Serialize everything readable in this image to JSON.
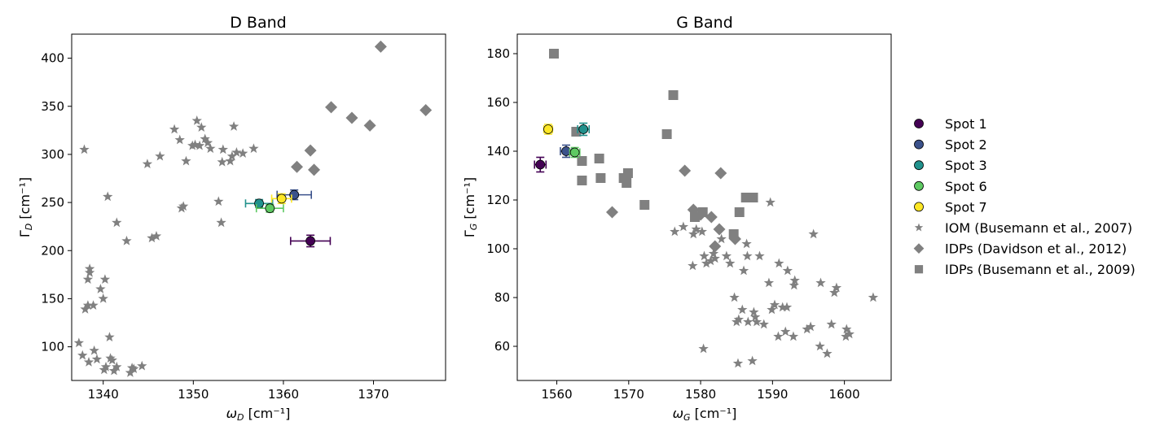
{
  "figure": {
    "legend": {
      "position": "right",
      "entries": [
        {
          "label": "Spot 1",
          "marker": "circle",
          "color": "#440154"
        },
        {
          "label": "Spot 2",
          "marker": "circle",
          "color": "#3b528b"
        },
        {
          "label": "Spot 3",
          "marker": "circle",
          "color": "#21918c"
        },
        {
          "label": "Spot 6",
          "marker": "circle",
          "color": "#5ec962"
        },
        {
          "label": "Spot 7",
          "marker": "circle",
          "color": "#fde725"
        },
        {
          "label": "IOM (Busemann et al., 2007)",
          "marker": "star",
          "color": "#808080"
        },
        {
          "label": "IDPs (Davidson et al., 2012)",
          "marker": "diamond",
          "color": "#808080"
        },
        {
          "label": "IDPs (Busemann et al., 2009)",
          "marker": "square",
          "color": "#808080"
        }
      ]
    }
  },
  "chart_data": [
    {
      "type": "scatter",
      "title": "D Band",
      "xlabel_symbol": "ω",
      "xlabel_sub": "D",
      "xlabel_unit": " [cm⁻¹]",
      "ylabel_symbol": "Γ",
      "ylabel_sub": "D",
      "ylabel_unit": " [cm⁻¹]",
      "xlim": [
        1336.5,
        1378
      ],
      "ylim": [
        65,
        425
      ],
      "xticks": [
        1340,
        1350,
        1360,
        1370
      ],
      "yticks": [
        100,
        150,
        200,
        250,
        300,
        350,
        400
      ],
      "grid": false,
      "spots": [
        {
          "name": "Spot 1",
          "x": 1363.0,
          "y": 210,
          "xerr": 2.2,
          "yerr": 6
        },
        {
          "name": "Spot 2",
          "x": 1361.2,
          "y": 258,
          "xerr": 1.9,
          "yerr": 5
        },
        {
          "name": "Spot 3",
          "x": 1357.3,
          "y": 249,
          "xerr": 1.5,
          "yerr": 4
        },
        {
          "name": "Spot 6",
          "x": 1358.5,
          "y": 244,
          "xerr": 1.5,
          "yerr": 4
        },
        {
          "name": "Spot 7",
          "x": 1359.8,
          "y": 254,
          "xerr": 1.1,
          "yerr": 5
        }
      ],
      "iom_points": [
        [
          1337.9,
          305
        ],
        [
          1337.3,
          104
        ],
        [
          1337.7,
          91
        ],
        [
          1338.0,
          139
        ],
        [
          1338.3,
          143
        ],
        [
          1338.4,
          84
        ],
        [
          1338.3,
          170
        ],
        [
          1338.5,
          177
        ],
        [
          1338.5,
          181
        ],
        [
          1338.9,
          143
        ],
        [
          1339.0,
          96
        ],
        [
          1339.3,
          87
        ],
        [
          1339.7,
          160
        ],
        [
          1340.0,
          150
        ],
        [
          1340.2,
          170
        ],
        [
          1340.1,
          76
        ],
        [
          1340.3,
          79
        ],
        [
          1340.5,
          256
        ],
        [
          1340.7,
          110
        ],
        [
          1340.8,
          88
        ],
        [
          1341.0,
          86
        ],
        [
          1341.2,
          75
        ],
        [
          1341.5,
          79
        ],
        [
          1341.5,
          229
        ],
        [
          1342.6,
          210
        ],
        [
          1343.0,
          73
        ],
        [
          1343.2,
          78
        ],
        [
          1343.4,
          77
        ],
        [
          1344.3,
          80
        ],
        [
          1344.9,
          290
        ],
        [
          1345.4,
          213
        ],
        [
          1345.9,
          215
        ],
        [
          1346.3,
          298
        ],
        [
          1347.9,
          326
        ],
        [
          1348.5,
          315
        ],
        [
          1348.7,
          244
        ],
        [
          1348.9,
          246
        ],
        [
          1349.2,
          293
        ],
        [
          1349.9,
          309
        ],
        [
          1350.2,
          310
        ],
        [
          1350.4,
          335
        ],
        [
          1350.7,
          309
        ],
        [
          1350.9,
          328
        ],
        [
          1351.3,
          316
        ],
        [
          1351.6,
          312
        ],
        [
          1351.9,
          306
        ],
        [
          1352.8,
          251
        ],
        [
          1353.1,
          229
        ],
        [
          1353.2,
          292
        ],
        [
          1353.3,
          305
        ],
        [
          1354.1,
          293
        ],
        [
          1354.3,
          298
        ],
        [
          1354.5,
          329
        ],
        [
          1354.8,
          302
        ],
        [
          1355.5,
          301
        ],
        [
          1356.7,
          306
        ]
      ],
      "davidson_points": [
        [
          1361.5,
          287
        ],
        [
          1363.0,
          304
        ],
        [
          1363.4,
          284
        ],
        [
          1365.3,
          349
        ],
        [
          1367.6,
          338
        ],
        [
          1369.6,
          330
        ],
        [
          1370.8,
          412
        ],
        [
          1375.8,
          346
        ]
      ],
      "busemann2009_points": []
    },
    {
      "type": "scatter",
      "title": "G Band",
      "xlabel_symbol": "ω",
      "xlabel_sub": "G",
      "xlabel_unit": " [cm⁻¹]",
      "ylabel_symbol": "Γ",
      "ylabel_sub": "G",
      "ylabel_unit": " [cm⁻¹]",
      "xlim": [
        1554.5,
        1606.5
      ],
      "ylim": [
        46,
        188
      ],
      "xticks": [
        1560,
        1570,
        1580,
        1590,
        1600
      ],
      "yticks": [
        60,
        80,
        100,
        120,
        140,
        160,
        180
      ],
      "grid": false,
      "spots": [
        {
          "name": "Spot 1",
          "x": 1557.7,
          "y": 134.5,
          "xerr": 0.8,
          "yerr": 3
        },
        {
          "name": "Spot 2",
          "x": 1561.3,
          "y": 140,
          "xerr": 0.8,
          "yerr": 2.5
        },
        {
          "name": "Spot 3",
          "x": 1563.7,
          "y": 149,
          "xerr": 0.8,
          "yerr": 2.5
        },
        {
          "name": "Spot 6",
          "x": 1562.5,
          "y": 139.5,
          "xerr": 0.7,
          "yerr": 2
        },
        {
          "name": "Spot 7",
          "x": 1558.8,
          "y": 149,
          "xerr": 0.6,
          "yerr": 2
        }
      ],
      "iom_points": [
        [
          1576.4,
          107
        ],
        [
          1577.6,
          109
        ],
        [
          1578.9,
          93
        ],
        [
          1579.0,
          106
        ],
        [
          1579.4,
          108
        ],
        [
          1580.2,
          107
        ],
        [
          1580.4,
          59
        ],
        [
          1580.5,
          97
        ],
        [
          1580.8,
          94
        ],
        [
          1581.4,
          95
        ],
        [
          1581.8,
          98
        ],
        [
          1582.0,
          96
        ],
        [
          1582.9,
          104
        ],
        [
          1583.6,
          97
        ],
        [
          1584.1,
          94
        ],
        [
          1584.7,
          80
        ],
        [
          1585.0,
          70
        ],
        [
          1585.2,
          53
        ],
        [
          1585.3,
          71
        ],
        [
          1585.8,
          75
        ],
        [
          1586.0,
          91
        ],
        [
          1586.4,
          102
        ],
        [
          1586.5,
          97
        ],
        [
          1586.6,
          70
        ],
        [
          1587.2,
          54
        ],
        [
          1587.4,
          74
        ],
        [
          1587.6,
          72
        ],
        [
          1587.8,
          70
        ],
        [
          1588.2,
          97
        ],
        [
          1588.8,
          69
        ],
        [
          1589.5,
          86
        ],
        [
          1589.7,
          119
        ],
        [
          1589.9,
          75
        ],
        [
          1590.3,
          77
        ],
        [
          1590.8,
          64
        ],
        [
          1590.9,
          94
        ],
        [
          1591.4,
          76
        ],
        [
          1591.8,
          66
        ],
        [
          1592.0,
          76
        ],
        [
          1592.1,
          91
        ],
        [
          1592.9,
          64
        ],
        [
          1593.0,
          85
        ],
        [
          1593.1,
          87
        ],
        [
          1594.8,
          67
        ],
        [
          1595.3,
          68
        ],
        [
          1595.7,
          106
        ],
        [
          1596.6,
          60
        ],
        [
          1596.7,
          86
        ],
        [
          1597.6,
          57
        ],
        [
          1598.2,
          69
        ],
        [
          1598.6,
          82
        ],
        [
          1598.9,
          84
        ],
        [
          1600.2,
          64
        ],
        [
          1600.3,
          67
        ],
        [
          1600.7,
          65
        ],
        [
          1604.0,
          80
        ]
      ],
      "davidson_points": [
        [
          1567.7,
          115
        ],
        [
          1577.8,
          132
        ],
        [
          1579.0,
          116
        ],
        [
          1580.0,
          114
        ],
        [
          1581.5,
          113
        ],
        [
          1582.0,
          101
        ],
        [
          1582.6,
          108
        ],
        [
          1582.8,
          131
        ],
        [
          1584.8,
          104
        ]
      ],
      "busemann2009_points": [
        [
          1559.6,
          180
        ],
        [
          1562.7,
          148
        ],
        [
          1563.5,
          136
        ],
        [
          1563.5,
          128
        ],
        [
          1565.9,
          137
        ],
        [
          1566.1,
          129
        ],
        [
          1569.3,
          129
        ],
        [
          1569.7,
          127
        ],
        [
          1569.9,
          131
        ],
        [
          1572.2,
          118
        ],
        [
          1575.3,
          147
        ],
        [
          1576.2,
          163
        ],
        [
          1579.2,
          113
        ],
        [
          1580.3,
          115
        ],
        [
          1584.6,
          106
        ],
        [
          1585.4,
          115
        ],
        [
          1586.3,
          121
        ],
        [
          1587.3,
          121
        ]
      ]
    }
  ]
}
